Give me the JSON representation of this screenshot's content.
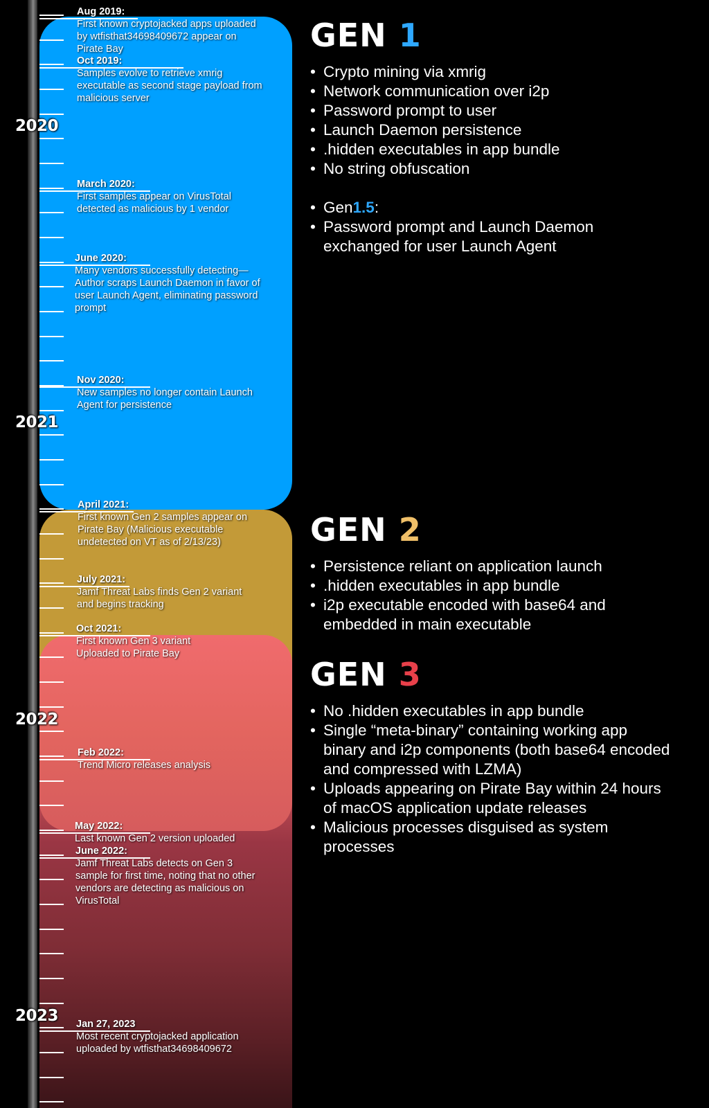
{
  "colors": {
    "gen1": "#00a0ff",
    "gen2": "#c39a38",
    "gen3": "#e05a5c",
    "gen1_num": "#2ea8ff",
    "gen2_num": "#f0c069",
    "gen3_num": "#e8404a"
  },
  "years": [
    "2020",
    "2021",
    "2022",
    "2023"
  ],
  "events": [
    {
      "date": "Aug 2019:",
      "text": "First known cryptojacked apps uploaded by wtfisthat34698409672 appear on Pirate Bay"
    },
    {
      "date": "Oct 2019:",
      "text": "Samples evolve to retrieve xmrig executable as second stage payload from malicious server"
    },
    {
      "date": "March 2020:",
      "text": "First samples appear on VirusTotal detected as malicious by 1 vendor"
    },
    {
      "date": "June 2020:",
      "text": "Many vendors successfully detecting—Author scraps Launch Daemon in favor of user Launch Agent, eliminating password prompt"
    },
    {
      "date": "Nov 2020:",
      "text": "New samples no longer contain Launch Agent for persistence"
    },
    {
      "date": "April 2021:",
      "text": "First known Gen 2 samples appear on Pirate Bay (Malicious executable undetected on VT as of 2/13/23)"
    },
    {
      "date": "July 2021:",
      "text": "Jamf Threat Labs finds Gen 2 variant and begins tracking"
    },
    {
      "date": "Oct 2021:",
      "text": "First known Gen 3 variant Uploaded to Pirate Bay"
    },
    {
      "date": "Feb 2022:",
      "text": "Trend Micro releases analysis"
    },
    {
      "date": "May 2022:",
      "text": "Last known Gen 2 version uploaded"
    },
    {
      "date": "June 2022:",
      "text": "Jamf Threat Labs detects on Gen 3 sample for first time, noting that no other vendors are detecting as malicious on VirusTotal"
    },
    {
      "date": "Jan 27, 2023",
      "text": "Most recent cryptojacked application uploaded by wtfisthat34698409672"
    }
  ],
  "gen1": {
    "prefix": "GEN",
    "num": "1",
    "items": [
      "Crypto mining via xmrig",
      "Network communication over i2p",
      "Password prompt to user",
      "Launch Daemon persistence",
      ".hidden executables in app bundle",
      "No string obfuscation"
    ],
    "sub_prefix": "Gen",
    "sub_num": "1.5",
    "sub_suffix": ":",
    "sub_items": [
      "Password prompt and Launch Daemon exchanged for user Launch Agent"
    ]
  },
  "gen2": {
    "prefix": "GEN",
    "num": "2",
    "items": [
      "Persistence reliant on application launch",
      ".hidden executables in app bundle",
      "i2p executable encoded with base64 and embedded in main executable"
    ]
  },
  "gen3": {
    "prefix": "GEN",
    "num": "3",
    "items": [
      "No .hidden executables in app bundle",
      "Single “meta-binary” containing working app binary and i2p components (both base64 encoded and compressed with LZMA)",
      "Uploads appearing on Pirate Bay within 24 hours of macOS application update releases",
      "Malicious processes disguised as system processes"
    ]
  }
}
